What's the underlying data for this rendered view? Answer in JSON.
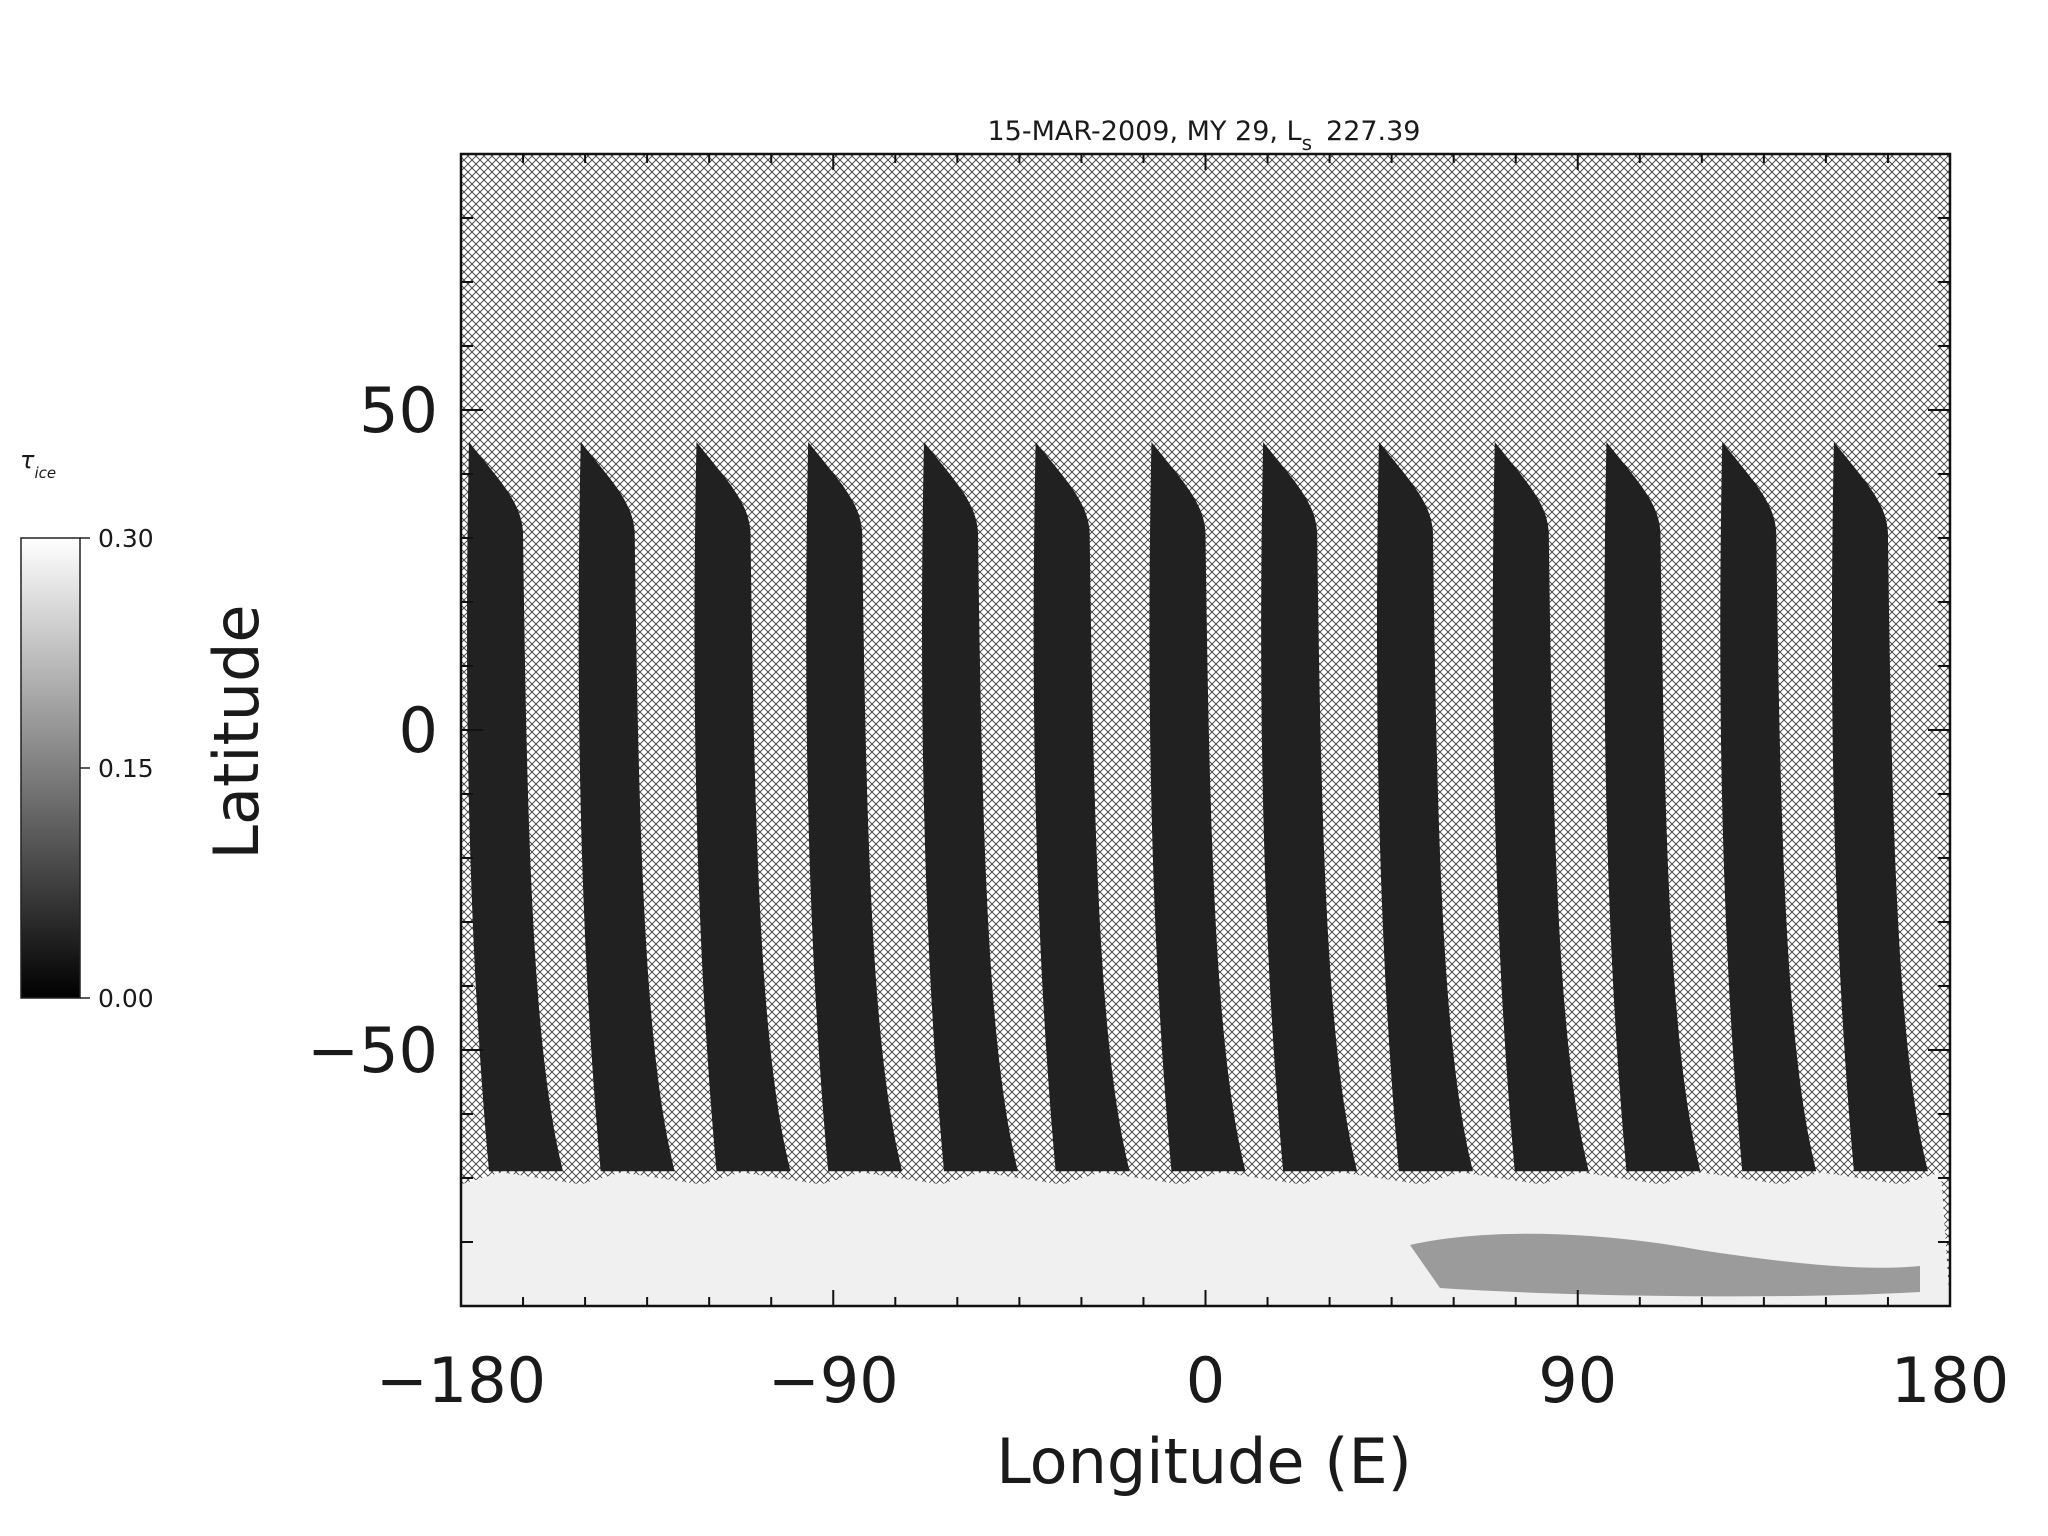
{
  "chart_data": {
    "type": "heatmap",
    "title": "15-MAR-2009, MY 29,  L",
    "title_subscript": "s",
    "title_value": "227.39",
    "xlabel": "Longitude (E)",
    "ylabel": "Latitude",
    "xlim": [
      -180,
      180
    ],
    "ylim": [
      -90,
      90
    ],
    "xticks": [
      -180,
      -90,
      0,
      90,
      180
    ],
    "xtick_labels": [
      "−180",
      "−90",
      "0",
      "90",
      "180"
    ],
    "yticks": [
      -50,
      0,
      50
    ],
    "ytick_labels": [
      "−50",
      "0",
      "50"
    ],
    "colorbar": {
      "label": "τ",
      "label_subscript": "ice",
      "min": 0.0,
      "max": 0.3,
      "ticks": [
        0.0,
        0.15,
        0.3
      ],
      "tick_labels": [
        "0.00",
        "0.15",
        "0.30"
      ],
      "colormap": "grayscale"
    },
    "no_data_pattern": "cross-hatch",
    "swath_count": 13,
    "swath_start_lon": [
      -180,
      -153,
      -125,
      -98,
      -70,
      -43,
      -15,
      12,
      40,
      68,
      95,
      123,
      150
    ],
    "swath_top_lat": 45,
    "swath_bottom_lat": -68,
    "swath_mean_tau": 0.02,
    "south_polar_band": {
      "lat_top": -68,
      "lat_bottom": -90,
      "mean_tau": 0.29
    }
  }
}
